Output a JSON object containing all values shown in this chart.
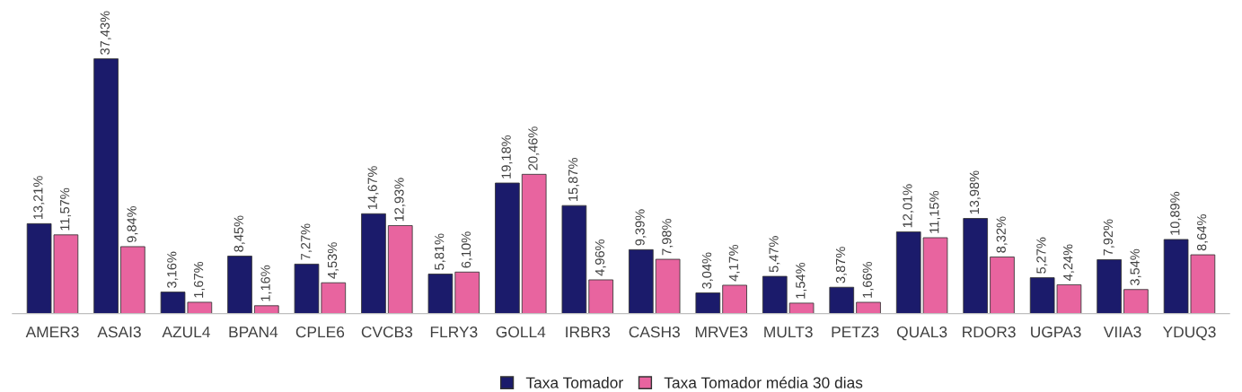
{
  "chart_data": {
    "type": "bar",
    "categories": [
      "AMER3",
      "ASAI3",
      "AZUL4",
      "BPAN4",
      "CPLE6",
      "CVCB3",
      "FLRY3",
      "GOLL4",
      "IRBR3",
      "CASH3",
      "MRVE3",
      "MULT3",
      "PETZ3",
      "QUAL3",
      "RDOR3",
      "UGPA3",
      "VIIA3",
      "YDUQ3"
    ],
    "series": [
      {
        "name": "Taxa Tomador",
        "color": "#1b1b6b",
        "values": [
          13.21,
          37.43,
          3.16,
          8.45,
          7.27,
          14.67,
          5.81,
          19.18,
          15.87,
          9.39,
          3.04,
          5.47,
          3.87,
          12.01,
          13.98,
          5.27,
          7.92,
          10.89
        ],
        "value_labels": [
          "13,21%",
          "37,43%",
          "3,16%",
          "8,45%",
          "7,27%",
          "14,67%",
          "5,81%",
          "19,18%",
          "15,87%",
          "9,39%",
          "3,04%",
          "5,47%",
          "3,87%",
          "12,01%",
          "13,98%",
          "5,27%",
          "7,92%",
          "10,89%"
        ]
      },
      {
        "name": "Taxa Tomador média 30 dias",
        "color": "#e8649f",
        "values": [
          11.57,
          9.84,
          1.67,
          1.16,
          4.53,
          12.93,
          6.1,
          20.46,
          4.96,
          7.98,
          4.17,
          1.54,
          1.66,
          11.15,
          8.32,
          4.24,
          3.54,
          8.64
        ],
        "value_labels": [
          "11,57%",
          "9,84%",
          "1,67%",
          "1,16%",
          "4,53%",
          "12,93%",
          "6,10%",
          "20,46%",
          "4,96%",
          "7,98%",
          "4,17%",
          "1,54%",
          "1,66%",
          "11,15%",
          "8,32%",
          "4,24%",
          "3,54%",
          "8,64%"
        ]
      }
    ],
    "legend": "bottom",
    "grid": false
  }
}
